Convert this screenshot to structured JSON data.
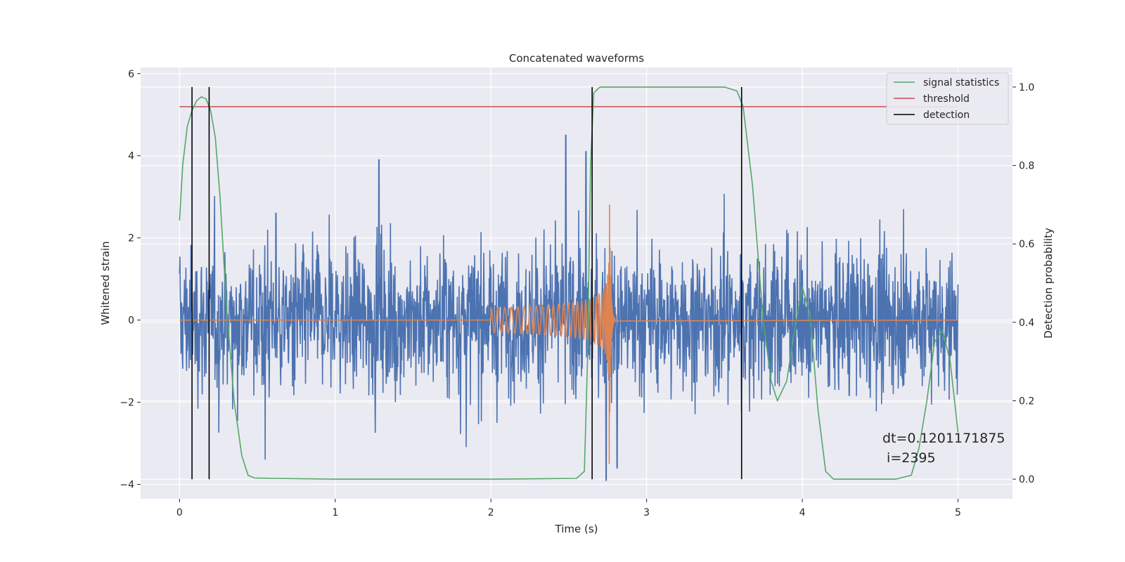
{
  "chart_data": {
    "type": "line",
    "title": "Concatenated waveforms",
    "xlabel": "Time (s)",
    "ylabel": "Whitened strain",
    "y2label": "Detection probability",
    "xlim": [
      -0.25,
      5.35
    ],
    "ylim": [
      -4.35,
      6.15
    ],
    "y2lim": [
      -0.05,
      1.05
    ],
    "x_ticks": [
      0,
      1,
      2,
      3,
      4,
      5
    ],
    "y_ticks": [
      -4,
      -2,
      0,
      2,
      4,
      6
    ],
    "y2_ticks": [
      0.0,
      0.2,
      0.4,
      0.6,
      0.8,
      1.0
    ],
    "x_tick_labels": [
      "0",
      "1",
      "2",
      "3",
      "4",
      "5"
    ],
    "y_tick_labels": [
      "−4",
      "−2",
      "0",
      "2",
      "4",
      "6"
    ],
    "y2_tick_labels": [
      "0.0",
      "0.2",
      "0.4",
      "0.6",
      "0.8",
      "1.0"
    ],
    "grid": true,
    "legend_position": "top-right",
    "colors": {
      "noise": "#4c72b0",
      "template": "#dd8452",
      "signal_statistics": "#55a868",
      "threshold": "#c44e52",
      "detection": "#000000",
      "plot_bg": "#eaeaf2",
      "grid": "#ffffff"
    },
    "series": [
      {
        "name": "whitened strain (noise)",
        "kind": "noise",
        "axis": "left",
        "x_range": [
          0,
          5
        ],
        "typical_amplitude": 0.85,
        "peaks": [
          [
            2.48,
            4.5
          ],
          [
            1.28,
            3.9
          ],
          [
            2.61,
            4.1
          ],
          [
            0.62,
            2.6
          ],
          [
            3.9,
            2.2
          ],
          [
            4.65,
            2.7
          ],
          [
            2.74,
            -3.9
          ],
          [
            0.55,
            -3.4
          ],
          [
            2.81,
            -3.6
          ]
        ]
      },
      {
        "name": "injected waveform",
        "kind": "chirp",
        "axis": "left",
        "x_start": 2.0,
        "merger_time": 2.76,
        "amplitude_at_start": 0.3,
        "peak_amplitude": 3.5
      },
      {
        "name": "signal statistics",
        "axis": "right",
        "x": [
          0.0,
          0.02,
          0.05,
          0.08,
          0.11,
          0.14,
          0.17,
          0.2,
          0.23,
          0.26,
          0.3,
          0.35,
          0.4,
          0.44,
          0.48,
          0.6,
          1.0,
          2.0,
          2.55,
          2.6,
          2.62,
          2.64,
          2.66,
          2.7,
          3.0,
          3.5,
          3.58,
          3.62,
          3.68,
          3.75,
          3.8,
          3.84,
          3.9,
          3.95,
          4.0,
          4.05,
          4.1,
          4.15,
          4.2,
          4.6,
          4.7,
          4.75,
          4.8,
          4.85,
          4.9,
          4.95,
          5.0
        ],
        "values": [
          0.66,
          0.8,
          0.9,
          0.94,
          0.965,
          0.975,
          0.97,
          0.94,
          0.87,
          0.72,
          0.45,
          0.2,
          0.06,
          0.01,
          0.003,
          0.002,
          0.0,
          0.0,
          0.002,
          0.02,
          0.3,
          0.8,
          0.985,
          1.0,
          1.0,
          1.0,
          0.99,
          0.95,
          0.75,
          0.4,
          0.25,
          0.2,
          0.25,
          0.38,
          0.49,
          0.42,
          0.18,
          0.02,
          0.0,
          0.0,
          0.01,
          0.08,
          0.2,
          0.35,
          0.38,
          0.3,
          0.12
        ]
      },
      {
        "name": "threshold",
        "axis": "right",
        "x": [
          0,
          5
        ],
        "values": [
          0.95,
          0.95
        ]
      },
      {
        "name": "detection",
        "kind": "vlines",
        "axis": "right",
        "x": [
          0.08,
          0.19,
          2.65,
          3.61
        ],
        "y_range": [
          0.0,
          1.0
        ]
      }
    ],
    "legend": [
      "signal statistics",
      "threshold",
      "detection"
    ],
    "annotation": {
      "line1": "dt=0.1201171875",
      "line2": " i=2395"
    }
  }
}
